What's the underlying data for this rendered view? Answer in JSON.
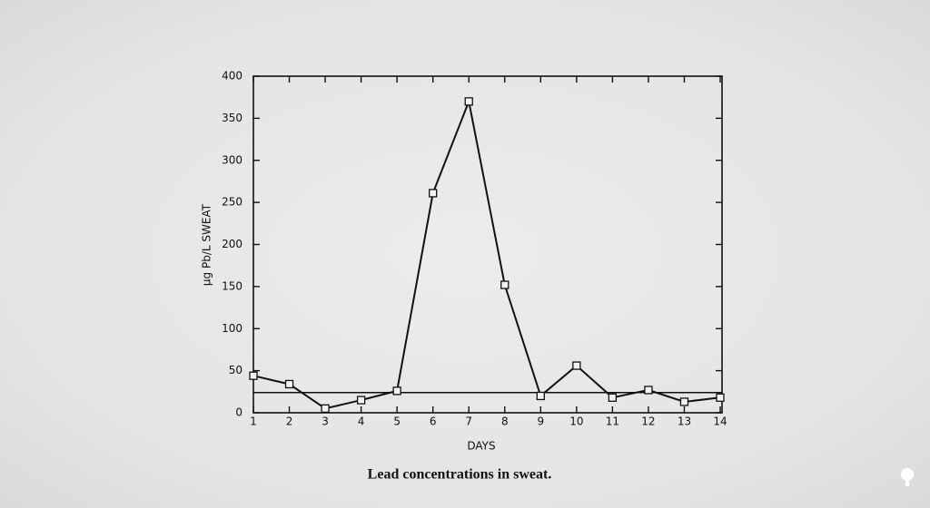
{
  "chart_data": {
    "type": "line",
    "title": "Lead concentrations in sweat.",
    "x_label": "DAYS",
    "y_label": "µg Pb/L SWEAT",
    "x": [
      1,
      2,
      3,
      4,
      5,
      6,
      7,
      8,
      9,
      10,
      11,
      12,
      13,
      14
    ],
    "values": [
      44,
      34,
      5,
      15,
      26,
      261,
      370,
      152,
      20,
      56,
      18,
      27,
      13,
      18
    ],
    "reference_line": 24,
    "color": "#111111",
    "xlim": [
      1,
      14
    ],
    "xticks": [
      1,
      2,
      3,
      4,
      5,
      6,
      7,
      8,
      9,
      10,
      11,
      12,
      13,
      14
    ],
    "ylim": [
      0,
      400
    ],
    "yticks": [
      0,
      50,
      100,
      150,
      200,
      250,
      300,
      350,
      400
    ]
  }
}
